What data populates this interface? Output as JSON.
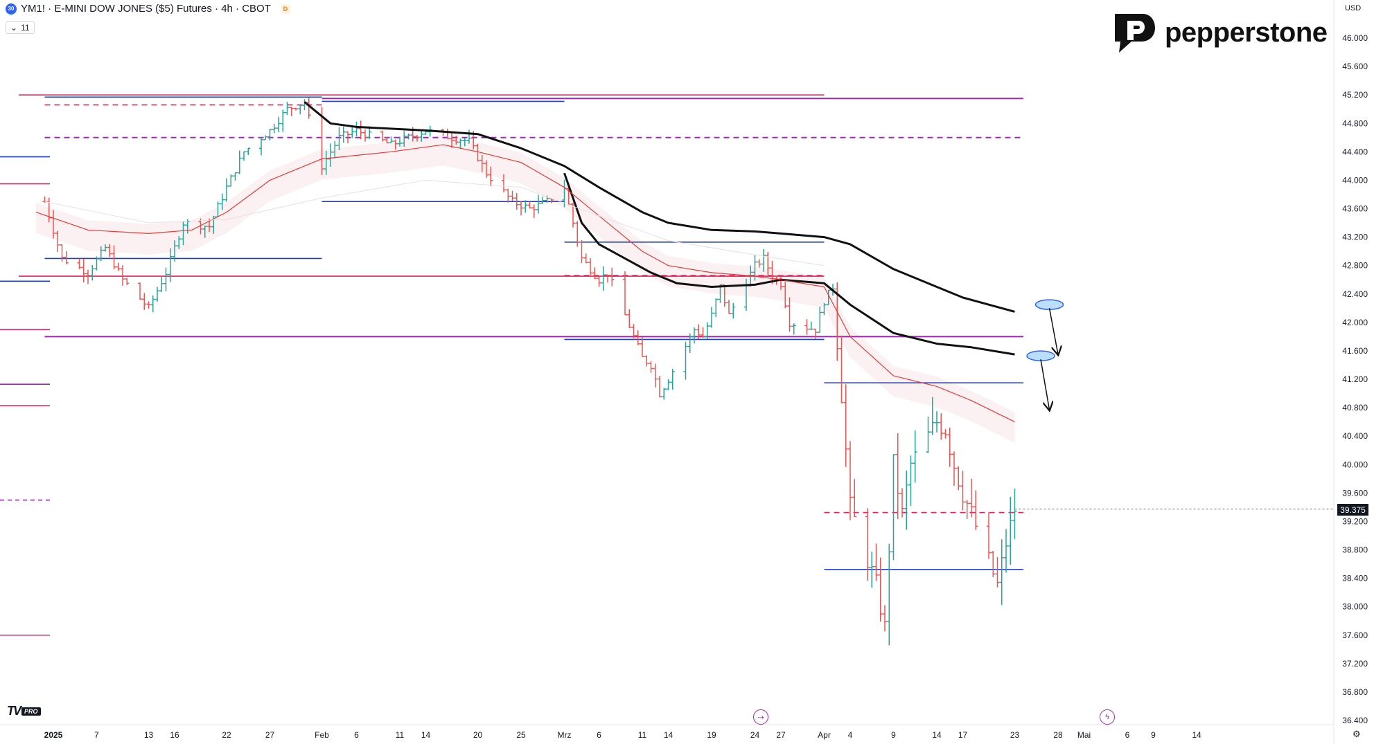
{
  "header": {
    "symbol_badge": "30",
    "title": "YM1! · E-MINI DOW JONES ($5) Futures · 4h · CBOT",
    "delayed_badge": "D",
    "indicator_toggle": "11"
  },
  "brand": {
    "name": "pepperstone"
  },
  "currency": "USD",
  "tv_logo": {
    "mark": "TV",
    "badge": "PRO"
  },
  "last_price": "39.375",
  "chart_data": {
    "type": "ohlc",
    "title": "YM1! · E-MINI DOW JONES ($5) Futures · 4h · CBOT",
    "ylim": [
      36400,
      46300
    ],
    "y_ticks": [
      {
        "value": 46000,
        "label": "46.000"
      },
      {
        "value": 45600,
        "label": "45.600"
      },
      {
        "value": 45200,
        "label": "45.200"
      },
      {
        "value": 44800,
        "label": "44.800"
      },
      {
        "value": 44400,
        "label": "44.400"
      },
      {
        "value": 44000,
        "label": "44.000"
      },
      {
        "value": 43600,
        "label": "43.600"
      },
      {
        "value": 43200,
        "label": "43.200"
      },
      {
        "value": 42800,
        "label": "42.800"
      },
      {
        "value": 42400,
        "label": "42.400"
      },
      {
        "value": 42000,
        "label": "42.000"
      },
      {
        "value": 41600,
        "label": "41.600"
      },
      {
        "value": 41200,
        "label": "41.200"
      },
      {
        "value": 40800,
        "label": "40.800"
      },
      {
        "value": 40400,
        "label": "40.400"
      },
      {
        "value": 40000,
        "label": "40.000"
      },
      {
        "value": 39600,
        "label": "39.600"
      },
      {
        "value": 39200,
        "label": "39.200"
      },
      {
        "value": 38800,
        "label": "38.800"
      },
      {
        "value": 38400,
        "label": "38.400"
      },
      {
        "value": 38000,
        "label": "38.000"
      },
      {
        "value": 37600,
        "label": "37.600"
      },
      {
        "value": 37200,
        "label": "37.200"
      },
      {
        "value": 36800,
        "label": "36.800"
      },
      {
        "value": 36400,
        "label": "36.400"
      }
    ],
    "x_ticks": [
      {
        "label": "2025",
        "bold": true
      },
      {
        "label": "7"
      },
      {
        "label": "13"
      },
      {
        "label": "16"
      },
      {
        "label": "22"
      },
      {
        "label": "27"
      },
      {
        "label": "Feb"
      },
      {
        "label": "6"
      },
      {
        "label": "11"
      },
      {
        "label": "14"
      },
      {
        "label": "20"
      },
      {
        "label": "25"
      },
      {
        "label": "Mrz"
      },
      {
        "label": "6"
      },
      {
        "label": "11"
      },
      {
        "label": "14"
      },
      {
        "label": "19"
      },
      {
        "label": "24"
      },
      {
        "label": "27"
      },
      {
        "label": "Apr"
      },
      {
        "label": "4"
      },
      {
        "label": "9"
      },
      {
        "label": "14"
      },
      {
        "label": "17"
      },
      {
        "label": "23"
      },
      {
        "label": "28"
      },
      {
        "label": "Mai"
      },
      {
        "label": "6"
      },
      {
        "label": "9"
      },
      {
        "label": "14"
      }
    ],
    "x_tick_dates": [
      "2025-01-02",
      "2025-01-07",
      "2025-01-13",
      "2025-01-16",
      "2025-01-22",
      "2025-01-27",
      "2025-02-02",
      "2025-02-06",
      "2025-02-11",
      "2025-02-14",
      "2025-02-20",
      "2025-02-25",
      "2025-03-02",
      "2025-03-06",
      "2025-03-11",
      "2025-03-14",
      "2025-03-19",
      "2025-03-24",
      "2025-03-27",
      "2025-04-01",
      "2025-04-04",
      "2025-04-09",
      "2025-04-14",
      "2025-04-17",
      "2025-04-23",
      "2025-04-28",
      "2025-05-01",
      "2025-05-06",
      "2025-05-09",
      "2025-05-14"
    ],
    "price_path": [
      [
        "2025-01-01",
        43700
      ],
      [
        "2025-01-03",
        42900
      ],
      [
        "2025-01-06",
        42700
      ],
      [
        "2025-01-08",
        43050
      ],
      [
        "2025-01-10",
        42600
      ],
      [
        "2025-01-13",
        42200
      ],
      [
        "2025-01-15",
        42700
      ],
      [
        "2025-01-17",
        43400
      ],
      [
        "2025-01-20",
        43350
      ],
      [
        "2025-01-22",
        43900
      ],
      [
        "2025-01-24",
        44400
      ],
      [
        "2025-01-27",
        44700
      ],
      [
        "2025-01-29",
        45000
      ],
      [
        "2025-01-31",
        45100
      ],
      [
        "2025-02-02",
        44200
      ],
      [
        "2025-02-04",
        44600
      ],
      [
        "2025-02-06",
        44700
      ],
      [
        "2025-02-10",
        44500
      ],
      [
        "2025-02-12",
        44600
      ],
      [
        "2025-02-14",
        44700
      ],
      [
        "2025-02-17",
        44600
      ],
      [
        "2025-02-19",
        44550
      ],
      [
        "2025-02-21",
        44100
      ],
      [
        "2025-02-24",
        43700
      ],
      [
        "2025-02-26",
        43600
      ],
      [
        "2025-02-28",
        43700
      ],
      [
        "2025-03-02",
        43900
      ],
      [
        "2025-03-04",
        42900
      ],
      [
        "2025-03-06",
        42600
      ],
      [
        "2025-03-07",
        42700
      ],
      [
        "2025-03-10",
        41800
      ],
      [
        "2025-03-11",
        41500
      ],
      [
        "2025-03-12",
        41400
      ],
      [
        "2025-03-13",
        41000
      ],
      [
        "2025-03-14",
        41200
      ],
      [
        "2025-03-17",
        41900
      ],
      [
        "2025-03-18",
        41800
      ],
      [
        "2025-03-19",
        42100
      ],
      [
        "2025-03-20",
        42500
      ],
      [
        "2025-03-21",
        42100
      ],
      [
        "2025-03-24",
        42800
      ],
      [
        "2025-03-25",
        42900
      ],
      [
        "2025-03-26",
        42650
      ],
      [
        "2025-03-27",
        42550
      ],
      [
        "2025-03-28",
        42000
      ],
      [
        "2025-03-31",
        41900
      ],
      [
        "2025-04-01",
        42300
      ],
      [
        "2025-04-02",
        42500
      ],
      [
        "2025-04-03",
        41000
      ],
      [
        "2025-04-04",
        39400
      ],
      [
        "2025-04-07",
        38300
      ],
      [
        "2025-04-08",
        37700
      ],
      [
        "2025-04-09",
        40000
      ],
      [
        "2025-04-10",
        39300
      ],
      [
        "2025-04-11",
        40000
      ],
      [
        "2025-04-14",
        40600
      ],
      [
        "2025-04-15",
        40500
      ],
      [
        "2025-04-16",
        40000
      ],
      [
        "2025-04-17",
        39600
      ],
      [
        "2025-04-18",
        39300
      ],
      [
        "2025-04-21",
        38300
      ],
      [
        "2025-04-22",
        38900
      ],
      [
        "2025-04-23",
        39375
      ]
    ],
    "last_close": 39375,
    "horizontal_levels": [
      {
        "value": 45200,
        "color": "#e91e63",
        "style": "solid",
        "from": "2024-12-29",
        "to": "2025-04-01"
      },
      {
        "value": 45150,
        "color": "#9c27b0",
        "style": "solid",
        "from": "2025-02-02",
        "to": "2025-04-24"
      },
      {
        "value": 45170,
        "color": "#1e3fc8",
        "style": "solid",
        "from": "2025-01-01",
        "to": "2025-02-02"
      },
      {
        "value": 45110,
        "color": "#1e3fc8",
        "style": "solid",
        "from": "2025-02-02",
        "to": "2025-03-02"
      },
      {
        "value": 45060,
        "color": "#e91e63",
        "style": "dashed",
        "from": "2025-01-01",
        "to": "2025-02-02"
      },
      {
        "value": 44600,
        "color": "#9c27b0",
        "style": "dashed",
        "from": "2025-01-01",
        "to": "2025-04-24"
      },
      {
        "value": 43700,
        "color": "#1e3fc8",
        "style": "solid",
        "from": "2025-02-02",
        "to": "2025-03-02"
      },
      {
        "value": 43130,
        "color": "#1e3fc8",
        "style": "solid",
        "from": "2025-03-02",
        "to": "2025-04-01"
      },
      {
        "value": 42900,
        "color": "#1e3fc8",
        "style": "solid",
        "from": "2025-01-01",
        "to": "2025-02-02"
      },
      {
        "value": 42650,
        "color": "#e91e63",
        "style": "solid",
        "from": "2024-12-29",
        "to": "2025-04-01"
      },
      {
        "value": 42660,
        "color": "#e91e63",
        "style": "dashed",
        "from": "2025-03-02",
        "to": "2025-04-01"
      },
      {
        "value": 41800,
        "color": "#9c27b0",
        "style": "solid",
        "from": "2025-01-01",
        "to": "2025-04-24"
      },
      {
        "value": 41760,
        "color": "#1e3fc8",
        "style": "solid",
        "from": "2025-03-02",
        "to": "2025-04-01"
      },
      {
        "value": 41150,
        "color": "#1e3fc8",
        "style": "solid",
        "from": "2025-04-01",
        "to": "2025-04-24"
      },
      {
        "value": 39325,
        "color": "#e91e63",
        "style": "dashed",
        "from": "2025-04-01",
        "to": "2025-04-24"
      },
      {
        "value": 38525,
        "color": "#1e3fc8",
        "style": "solid",
        "from": "2025-04-01",
        "to": "2025-04-24"
      }
    ],
    "left_edge_stubs": [
      {
        "value": 44330,
        "color": "#1e3fc8"
      },
      {
        "value": 43950,
        "color": "#e91e63"
      },
      {
        "value": 42580,
        "color": "#1e3fc8"
      },
      {
        "value": 41900,
        "color": "#e91e63"
      },
      {
        "value": 41130,
        "color": "#9c27b0"
      },
      {
        "value": 40830,
        "color": "#e91e63"
      },
      {
        "value": 39500,
        "color": "#9c27b0",
        "dashed": true
      },
      {
        "value": 37600,
        "color": "#e91e63"
      }
    ],
    "moving_averages": [
      {
        "color": "#111111",
        "width": 3,
        "points": [
          [
            "2025-01-31",
            45100
          ],
          [
            "2025-02-03",
            44800
          ],
          [
            "2025-02-06",
            44750
          ],
          [
            "2025-02-14",
            44700
          ],
          [
            "2025-02-20",
            44650
          ],
          [
            "2025-02-25",
            44450
          ],
          [
            "2025-03-02",
            44200
          ],
          [
            "2025-03-06",
            43900
          ],
          [
            "2025-03-11",
            43550
          ],
          [
            "2025-03-14",
            43400
          ],
          [
            "2025-03-19",
            43300
          ],
          [
            "2025-03-24",
            43280
          ],
          [
            "2025-03-27",
            43250
          ],
          [
            "2025-04-01",
            43200
          ],
          [
            "2025-04-04",
            43100
          ],
          [
            "2025-04-09",
            42750
          ],
          [
            "2025-04-14",
            42500
          ],
          [
            "2025-04-17",
            42350
          ],
          [
            "2025-04-23",
            42150
          ]
        ]
      },
      {
        "color": "#111111",
        "width": 3,
        "points": [
          [
            "2025-03-02",
            44100
          ],
          [
            "2025-03-04",
            43400
          ],
          [
            "2025-03-06",
            43100
          ],
          [
            "2025-03-09",
            42900
          ],
          [
            "2025-03-12",
            42700
          ],
          [
            "2025-03-15",
            42550
          ],
          [
            "2025-03-19",
            42500
          ],
          [
            "2025-03-24",
            42530
          ],
          [
            "2025-03-27",
            42600
          ],
          [
            "2025-04-01",
            42550
          ],
          [
            "2025-04-04",
            42250
          ],
          [
            "2025-04-09",
            41850
          ],
          [
            "2025-04-14",
            41700
          ],
          [
            "2025-04-18",
            41650
          ],
          [
            "2025-04-23",
            41550
          ]
        ]
      },
      {
        "color": "#e53935",
        "width": 1.2,
        "points": [
          [
            "2024-12-31",
            43550
          ],
          [
            "2025-01-06",
            43300
          ],
          [
            "2025-01-13",
            43250
          ],
          [
            "2025-01-18",
            43300
          ],
          [
            "2025-01-22",
            43550
          ],
          [
            "2025-01-27",
            44000
          ],
          [
            "2025-02-02",
            44300
          ],
          [
            "2025-02-10",
            44400
          ],
          [
            "2025-02-16",
            44500
          ],
          [
            "2025-02-20",
            44400
          ],
          [
            "2025-02-25",
            44250
          ],
          [
            "2025-03-02",
            43900
          ],
          [
            "2025-03-06",
            43500
          ],
          [
            "2025-03-11",
            43000
          ],
          [
            "2025-03-14",
            42800
          ],
          [
            "2025-03-19",
            42700
          ],
          [
            "2025-03-24",
            42650
          ],
          [
            "2025-03-27",
            42600
          ],
          [
            "2025-04-01",
            42500
          ],
          [
            "2025-04-04",
            41800
          ],
          [
            "2025-04-09",
            41250
          ],
          [
            "2025-04-14",
            41100
          ],
          [
            "2025-04-18",
            40900
          ],
          [
            "2025-04-23",
            40600
          ]
        ]
      },
      {
        "color": "#e8e0e0",
        "width": 1,
        "points": [
          [
            "2025-01-01",
            43700
          ],
          [
            "2025-01-13",
            43400
          ],
          [
            "2025-01-22",
            43450
          ],
          [
            "2025-02-02",
            43750
          ],
          [
            "2025-02-14",
            44000
          ],
          [
            "2025-02-25",
            43900
          ],
          [
            "2025-03-06",
            43500
          ],
          [
            "2025-03-14",
            43150
          ],
          [
            "2025-03-24",
            42950
          ],
          [
            "2025-04-01",
            42800
          ]
        ]
      }
    ],
    "annotations": [
      {
        "type": "ellipse",
        "date": "2025-04-27",
        "value": 42250,
        "color": "#2962ff"
      },
      {
        "type": "ellipse",
        "date": "2025-04-26",
        "value": 41530,
        "color": "#2962ff"
      },
      {
        "type": "arrow",
        "from": [
          "2025-04-27",
          42200
        ],
        "to": [
          "2025-04-28",
          41550
        ]
      },
      {
        "type": "arrow",
        "from": [
          "2025-04-26",
          41480
        ],
        "to": [
          "2025-04-27",
          40770
        ]
      }
    ]
  }
}
